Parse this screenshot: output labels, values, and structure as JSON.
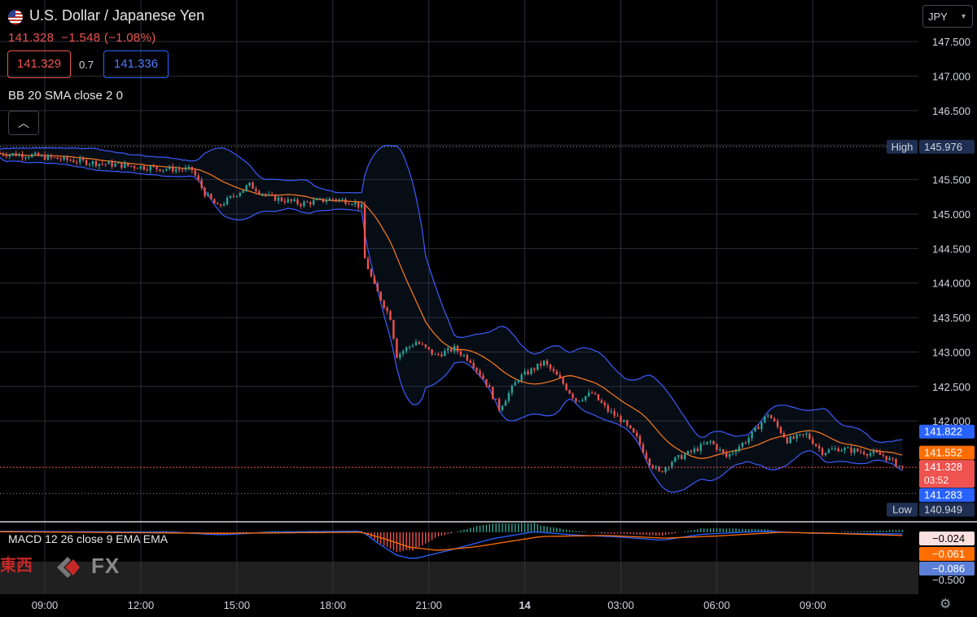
{
  "header": {
    "title": "U.S. Dollar / Japanese Yen",
    "last": "141.328",
    "change": "−1.548 (−1.08%)",
    "bid": "141.329",
    "spread": "0.7",
    "ask": "141.336",
    "indicator_label": "BB 20 SMA close 2 0",
    "collapse_icon": "chevron-up-icon",
    "currency": "JPY"
  },
  "macd": {
    "label": "MACD 12 26 close 9 EMA EMA",
    "values": [
      "−0.024",
      "−0.061",
      "−0.086"
    ],
    "scale_label": "−0.500"
  },
  "watermark": {
    "text": "東西",
    "fx": "FX"
  },
  "colors": {
    "up": "#26a69a",
    "down": "#ef5350",
    "bb_band": "#3d5afe",
    "bb_mid": "#ff7c1f",
    "macd_line": "#2962ff",
    "signal_line": "#ff6d00",
    "background": "#000000",
    "grid": "#2a2e39"
  },
  "chart_data": {
    "type": "candlestick",
    "instrument": "U.S. Dollar / Japanese Yen",
    "x_tick_labels": [
      "09:00",
      "12:00",
      "15:00",
      "18:00",
      "21:00",
      "14",
      "03:00",
      "06:00",
      "09:00"
    ],
    "x_tick_hours": [
      9,
      12,
      15,
      18,
      21,
      24,
      27,
      30,
      33
    ],
    "x_range_hours": [
      7.6,
      36.3
    ],
    "y_tick_labels": [
      "147.500",
      "147.000",
      "146.500",
      "146.000",
      "145.500",
      "145.000",
      "144.500",
      "144.000",
      "143.500",
      "143.000",
      "142.500",
      "142.000"
    ],
    "y_range": [
      140.55,
      147.75
    ],
    "markers": [
      {
        "label": "High",
        "value": "145.976"
      },
      {
        "label": "",
        "value": "141.822"
      },
      {
        "label": "",
        "value": "141.552"
      },
      {
        "label": "",
        "value": "141.328",
        "sub": "03:52"
      },
      {
        "label": "",
        "value": "141.283"
      },
      {
        "label": "Low",
        "value": "140.949"
      }
    ],
    "close_path": [
      [
        7.6,
        145.88
      ],
      [
        8.6,
        145.85
      ],
      [
        9.6,
        145.79
      ],
      [
        10.6,
        145.74
      ],
      [
        11.6,
        145.7
      ],
      [
        12.6,
        145.66
      ],
      [
        13.6,
        145.64
      ],
      [
        14.0,
        145.3
      ],
      [
        14.4,
        145.1
      ],
      [
        15.0,
        145.3
      ],
      [
        15.4,
        145.42
      ],
      [
        16.0,
        145.25
      ],
      [
        17.0,
        145.15
      ],
      [
        18.0,
        145.22
      ],
      [
        18.6,
        145.18
      ],
      [
        18.9,
        145.1
      ],
      [
        19.0,
        144.35
      ],
      [
        19.3,
        143.95
      ],
      [
        19.8,
        143.5
      ],
      [
        20.0,
        142.95
      ],
      [
        20.6,
        143.15
      ],
      [
        21.2,
        142.95
      ],
      [
        21.8,
        143.05
      ],
      [
        22.3,
        142.88
      ],
      [
        22.8,
        142.55
      ],
      [
        23.2,
        142.18
      ],
      [
        23.8,
        142.62
      ],
      [
        24.6,
        142.85
      ],
      [
        25.1,
        142.6
      ],
      [
        25.6,
        142.3
      ],
      [
        26.1,
        142.4
      ],
      [
        26.6,
        142.15
      ],
      [
        27.0,
        142.02
      ],
      [
        27.5,
        141.75
      ],
      [
        27.9,
        141.4
      ],
      [
        28.2,
        141.25
      ],
      [
        28.6,
        141.42
      ],
      [
        29.2,
        141.55
      ],
      [
        29.8,
        141.7
      ],
      [
        30.3,
        141.48
      ],
      [
        31.0,
        141.75
      ],
      [
        31.6,
        142.1
      ],
      [
        32.2,
        141.72
      ],
      [
        32.8,
        141.8
      ],
      [
        33.3,
        141.55
      ],
      [
        33.8,
        141.6
      ],
      [
        34.6,
        141.55
      ],
      [
        35.2,
        141.5
      ],
      [
        35.8,
        141.32
      ]
    ],
    "macd_range": [
      -0.55,
      0.12
    ],
    "macd_path": [
      [
        7.6,
        0.02
      ],
      [
        13.0,
        0.0
      ],
      [
        14.5,
        -0.05
      ],
      [
        16.0,
        0.0
      ],
      [
        18.9,
        0.02
      ],
      [
        19.4,
        -0.2
      ],
      [
        20.0,
        -0.43
      ],
      [
        20.5,
        -0.5
      ],
      [
        21.5,
        -0.36
      ],
      [
        23.0,
        -0.12
      ],
      [
        24.3,
        0.01
      ],
      [
        25.5,
        -0.05
      ],
      [
        27.0,
        -0.09
      ],
      [
        28.3,
        -0.15
      ],
      [
        29.5,
        -0.04
      ],
      [
        31.5,
        0.02
      ],
      [
        33.0,
        -0.02
      ],
      [
        35.8,
        -0.03
      ]
    ],
    "signal_path": [
      [
        7.6,
        0.01
      ],
      [
        14.5,
        -0.02
      ],
      [
        18.9,
        0.0
      ],
      [
        19.6,
        -0.12
      ],
      [
        20.4,
        -0.28
      ],
      [
        21.3,
        -0.34
      ],
      [
        22.5,
        -0.27
      ],
      [
        24.5,
        -0.08
      ],
      [
        26.5,
        -0.06
      ],
      [
        28.4,
        -0.11
      ],
      [
        30.0,
        -0.07
      ],
      [
        32.0,
        0.0
      ],
      [
        33.5,
        -0.02
      ],
      [
        35.8,
        -0.06
      ]
    ]
  }
}
